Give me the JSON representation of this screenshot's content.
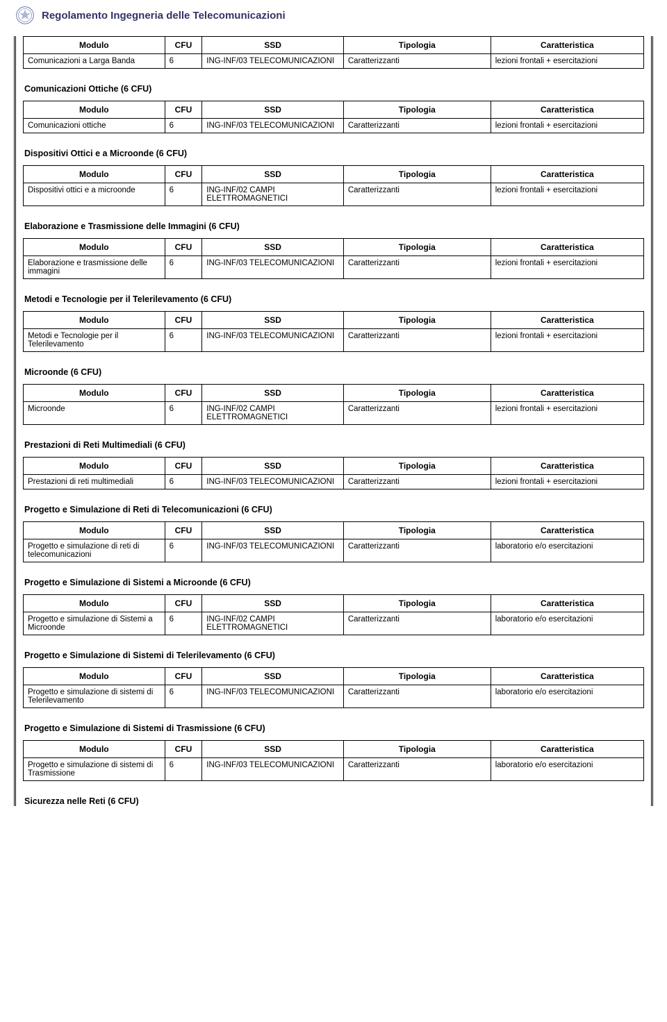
{
  "page_title": "Regolamento Ingegneria delle Telecomunicazioni",
  "headers": {
    "modulo": "Modulo",
    "cfu": "CFU",
    "ssd": "SSD",
    "tipologia": "Tipologia",
    "caratteristica": "Caratteristica"
  },
  "sections": [
    {
      "title": "",
      "rows": [
        {
          "modulo": "Comunicazioni a Larga Banda",
          "cfu": "6",
          "ssd": "ING-INF/03 TELECOMUNICAZIONI",
          "tipologia": "Caratterizzanti",
          "caratteristica": "lezioni frontali + esercitazioni"
        }
      ]
    },
    {
      "title": "Comunicazioni Ottiche (6 CFU)",
      "rows": [
        {
          "modulo": "Comunicazioni ottiche",
          "cfu": "6",
          "ssd": "ING-INF/03 TELECOMUNICAZIONI",
          "tipologia": "Caratterizzanti",
          "caratteristica": "lezioni frontali + esercitazioni"
        }
      ]
    },
    {
      "title": "Dispositivi Ottici e a Microonde (6 CFU)",
      "rows": [
        {
          "modulo": "Dispositivi ottici e a microonde",
          "cfu": "6",
          "ssd": "ING-INF/02 CAMPI ELETTROMAGNETICI",
          "tipologia": "Caratterizzanti",
          "caratteristica": "lezioni frontali + esercitazioni"
        }
      ]
    },
    {
      "title": "Elaborazione e Trasmissione delle Immagini (6 CFU)",
      "rows": [
        {
          "modulo": "Elaborazione e trasmissione delle immagini",
          "cfu": "6",
          "ssd": "ING-INF/03 TELECOMUNICAZIONI",
          "tipologia": "Caratterizzanti",
          "caratteristica": "lezioni frontali + esercitazioni"
        }
      ]
    },
    {
      "title": "Metodi e Tecnologie per il Telerilevamento (6 CFU)",
      "rows": [
        {
          "modulo": "Metodi e Tecnologie per il Telerilevamento",
          "cfu": "6",
          "ssd": "ING-INF/03 TELECOMUNICAZIONI",
          "tipologia": "Caratterizzanti",
          "caratteristica": "lezioni frontali + esercitazioni"
        }
      ]
    },
    {
      "title": "Microonde (6 CFU)",
      "rows": [
        {
          "modulo": "Microonde",
          "cfu": "6",
          "ssd": "ING-INF/02 CAMPI ELETTROMAGNETICI",
          "tipologia": "Caratterizzanti",
          "caratteristica": "lezioni frontali + esercitazioni"
        }
      ]
    },
    {
      "title": "Prestazioni di Reti Multimediali (6 CFU)",
      "rows": [
        {
          "modulo": "Prestazioni di reti multimediali",
          "cfu": "6",
          "ssd": "ING-INF/03 TELECOMUNICAZIONI",
          "tipologia": "Caratterizzanti",
          "caratteristica": "lezioni frontali + esercitazioni"
        }
      ]
    },
    {
      "title": "Progetto e Simulazione di Reti di Telecomunicazioni (6 CFU)",
      "rows": [
        {
          "modulo": "Progetto e simulazione di reti di telecomunicazioni",
          "cfu": "6",
          "ssd": "ING-INF/03 TELECOMUNICAZIONI",
          "tipologia": "Caratterizzanti",
          "caratteristica": "laboratorio e/o esercitazioni"
        }
      ]
    },
    {
      "title": "Progetto e Simulazione di Sistemi a Microonde (6 CFU)",
      "rows": [
        {
          "modulo": "Progetto e simulazione di Sistemi a Microonde",
          "cfu": "6",
          "ssd": "ING-INF/02 CAMPI ELETTROMAGNETICI",
          "tipologia": "Caratterizzanti",
          "caratteristica": "laboratorio e/o esercitazioni"
        }
      ]
    },
    {
      "title": "Progetto e Simulazione di Sistemi di Telerilevamento (6 CFU)",
      "rows": [
        {
          "modulo": "Progetto e simulazione di sistemi di Telerilevamento",
          "cfu": "6",
          "ssd": "ING-INF/03 TELECOMUNICAZIONI",
          "tipologia": "Caratterizzanti",
          "caratteristica": "laboratorio e/o esercitazioni"
        }
      ]
    },
    {
      "title": "Progetto e Simulazione di Sistemi di Trasmissione (6 CFU)",
      "rows": [
        {
          "modulo": "Progetto e simulazione di sistemi di Trasmissione",
          "cfu": "6",
          "ssd": "ING-INF/03 TELECOMUNICAZIONI",
          "tipologia": "Caratterizzanti",
          "caratteristica": "laboratorio e/o esercitazioni"
        }
      ]
    }
  ],
  "final_section_title": "Sicurezza nelle Reti (6 CFU)"
}
